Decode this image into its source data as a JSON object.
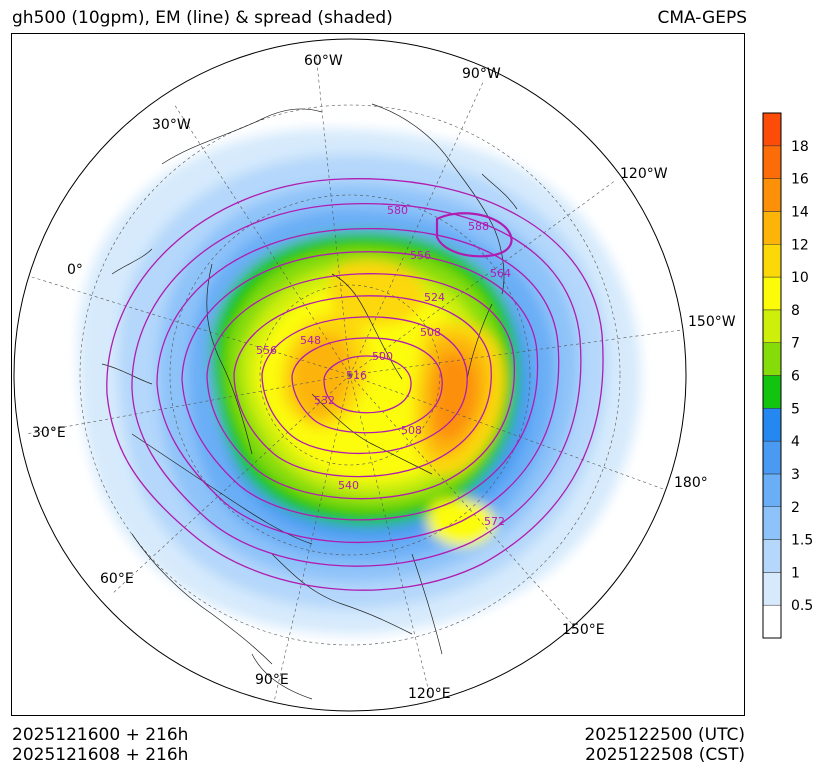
{
  "header": {
    "title": "gh500 (10gpm), EM (line) & spread (shaded)",
    "model": "CMA-GEPS"
  },
  "footer": {
    "init_utc": "2025121600 + 216h",
    "init_cst": "2025121608 + 216h",
    "valid_utc": "2025122500 (UTC)",
    "valid_cst": "2025122508 (CST)"
  },
  "map": {
    "projection": "north-polar-stereographic",
    "longitude_labels": [
      "60°W",
      "90°W",
      "120°W",
      "150°W",
      "180°",
      "150°E",
      "120°E",
      "90°E",
      "60°E",
      "30°E",
      "0°",
      "30°W"
    ],
    "contour_labels": [
      "580",
      "588",
      "556",
      "564",
      "524",
      "508",
      "500",
      "548",
      "556",
      "516",
      "532",
      "508",
      "540",
      "572"
    ],
    "contour_color": "#b01cb0"
  },
  "colorbar": {
    "ticks": [
      "0.5",
      "1",
      "1.5",
      "2",
      "3",
      "4",
      "5",
      "6",
      "7",
      "8",
      "10",
      "12",
      "14",
      "16",
      "18"
    ],
    "colors": [
      "#ffffff",
      "#d6eafc",
      "#b4d7fb",
      "#8ec3f9",
      "#6aaef6",
      "#4a9af3",
      "#2587f0",
      "#12c40f",
      "#86dc08",
      "#cdef0a",
      "#fcfc08",
      "#fcd808",
      "#fcb408",
      "#fc9008",
      "#fc6c08",
      "#fc4c08"
    ]
  }
}
